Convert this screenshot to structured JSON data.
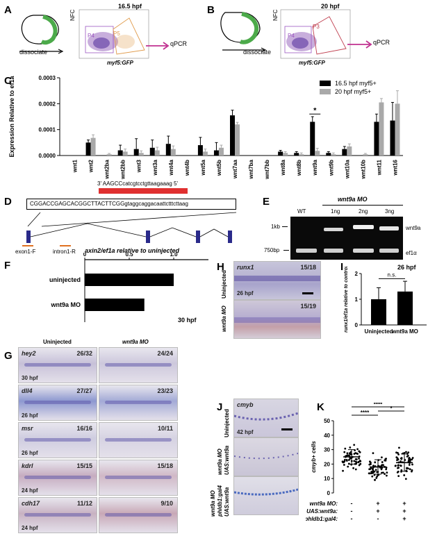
{
  "panels": {
    "A": {
      "letter": "A",
      "stage": "16.5 hpf",
      "step": "dissociate",
      "assay": "qPCR",
      "x_axis": "myf5:GFP",
      "y_axis": "NFC",
      "gate_left": "P4",
      "gate_right": "P5"
    },
    "B": {
      "letter": "B",
      "stage": "20 hpf",
      "step": "dissociate",
      "assay": "qPCR",
      "x_axis": "myf5:GFP",
      "y_axis": "NFC",
      "gate_left": "P4",
      "gate_right": "P3"
    },
    "C": {
      "letter": "C",
      "ylabel": "Expression Relative to ef1a",
      "legend": [
        "16.5 hpf myf5+",
        "20 hpf myf5+"
      ],
      "significance": "*"
    },
    "D": {
      "letter": "D",
      "mo_seq": "3' AAGCCcatcgtcctgttaagaaag 5'",
      "genomic_seq": "CGGACCGAGCACGGCTTACTTCGGgtaggcaggacaattctttcttaag",
      "primer_f": "exon1-F",
      "primer_r": "intron1-R"
    },
    "E": {
      "letter": "E",
      "title": "wnt9a MO",
      "lanes": [
        "WT",
        "1ng",
        "2ng",
        "3ng"
      ],
      "markers": [
        "1kb",
        "750bp"
      ],
      "bands": [
        "wnt9a",
        "ef1α"
      ]
    },
    "F": {
      "letter": "F",
      "title": "axin2/ef1a relative to uninjected",
      "ticks": [
        "0",
        "0.5",
        "1.0",
        "1.5"
      ],
      "rows": [
        "uninjected",
        "wnt9a MO"
      ],
      "stage": "30 hpf"
    },
    "G": {
      "letter": "G",
      "col1": "Uninjected",
      "col2": "wnt9a MO",
      "rows": [
        {
          "gene": "hey2",
          "stage": "30 hpf",
          "c1": "26/32",
          "c2": "24/24"
        },
        {
          "gene": "dll4",
          "stage": "26 hpf",
          "c1": "27/27",
          "c2": "23/23"
        },
        {
          "gene": "msr",
          "stage": "26 hpf",
          "c1": "16/16",
          "c2": "10/11"
        },
        {
          "gene": "kdrl",
          "stage": "24 hpf",
          "c1": "15/15",
          "c2": "15/18"
        },
        {
          "gene": "cdh17",
          "stage": "24 hpf",
          "c1": "11/12",
          "c2": "9/10"
        }
      ]
    },
    "H": {
      "letter": "H",
      "gene": "runx1",
      "row1": "Uninjected",
      "row2": "wnt9a MO",
      "c1": "15/18",
      "c2": "15/19",
      "stage": "26 hpf"
    },
    "I": {
      "letter": "I",
      "stage": "26 hpf",
      "ylabel": "runx1/ef1a relative to control",
      "categories": [
        "Uninjected",
        "wnt9a MO"
      ],
      "sig": "n.s.",
      "yticks": [
        "0",
        "1",
        "2"
      ]
    },
    "J": {
      "letter": "J",
      "gene": "cmyb",
      "stage": "42 hpf",
      "row1": "Uninjected",
      "row2a": "wnt9a MO",
      "row2b": "UAS:wnt9a",
      "row3a": "wnt9a MO",
      "row3b": "phldb1:gal4",
      "row3c": "UAS:wnt9a"
    },
    "K": {
      "letter": "K",
      "ylabel": "cmyb+ cells",
      "yticks": [
        "0",
        "10",
        "20",
        "30",
        "40",
        "50"
      ],
      "stars": [
        "****",
        "****",
        "*"
      ],
      "row_labels": [
        "wnt9a MO:",
        "UAS:wnt9a:",
        "phldb1:gal4:"
      ],
      "matrix": [
        [
          "-",
          "+",
          "+"
        ],
        [
          "-",
          "+",
          "+"
        ],
        [
          "-",
          "-",
          "+"
        ]
      ]
    }
  },
  "chart_data": [
    {
      "type": "bar",
      "title": "",
      "ylabel": "Expression Relative to ef1a",
      "ylim": [
        0,
        0.0003
      ],
      "categories": [
        "wnt1",
        "wnt2",
        "wnt2ba",
        "wnt2bb",
        "wnt3",
        "wnt3a",
        "wnt4a",
        "wnt4b",
        "wnt5a",
        "wnt5b",
        "wnt7aa",
        "wnt7ba",
        "wnt7bb",
        "wnt8a",
        "wnt8b",
        "wnt9a",
        "wnt9b",
        "wnt10a",
        "wnt10b",
        "wnt11",
        "wnt16"
      ],
      "series": [
        {
          "name": "16.5 hpf myf5+",
          "values": [
            0,
            5e-05,
            0,
            2e-05,
            2.5e-05,
            3e-05,
            4.5e-05,
            0,
            4e-05,
            2e-05,
            0.000155,
            0,
            0,
            1.5e-05,
            1e-05,
            0.00013,
            1e-05,
            2.5e-05,
            0,
            0.00013,
            0.000135
          ]
        },
        {
          "name": "20 hpf myf5+",
          "values": [
            0,
            6.8e-05,
            5e-06,
            1.5e-05,
            1e-05,
            2e-05,
            2.5e-05,
            0,
            1.5e-05,
            3e-05,
            0.00012,
            0,
            0,
            1e-05,
            5e-06,
            1.8e-05,
            5e-06,
            3.5e-05,
            5e-06,
            0.000205,
            0.0002
          ]
        }
      ],
      "errors": [
        [
          0,
          1e-05,
          0,
          2e-05,
          4e-05,
          3e-05,
          3e-05,
          0,
          3e-05,
          3e-05,
          2e-05,
          0,
          0,
          5e-06,
          5e-06,
          2e-05,
          5e-06,
          1e-05,
          0,
          3e-05,
          7e-05
        ],
        [
          0,
          1.2e-05,
          3e-06,
          1e-05,
          8e-06,
          1.2e-05,
          1.2e-05,
          0,
          1e-05,
          1e-05,
          8e-06,
          0,
          0,
          5e-06,
          5e-06,
          1e-05,
          5e-06,
          1e-05,
          3e-06,
          1.5e-05,
          5e-05
        ]
      ]
    },
    {
      "type": "bar",
      "title": "axin2/ef1a relative to uninjected",
      "categories": [
        "uninjected",
        "wnt9a MO"
      ],
      "values": [
        1.0,
        0.67
      ],
      "xlim": [
        0,
        1.5
      ],
      "orientation": "horizontal"
    },
    {
      "type": "bar",
      "title": "26 hpf",
      "ylabel": "runx1/ef1a relative to control",
      "categories": [
        "Uninjected",
        "wnt9a MO"
      ],
      "values": [
        1.0,
        1.3
      ],
      "errors": [
        0.45,
        0.4
      ],
      "ylim": [
        0,
        2
      ]
    },
    {
      "type": "scatter",
      "ylabel": "cmyb+ cells",
      "ylim": [
        0,
        50
      ],
      "groups": [
        "control",
        "wnt9a MO + UAS:wnt9a",
        "wnt9a MO + phldb1:gal4 + UAS:wnt9a"
      ],
      "means": [
        25,
        18,
        21
      ],
      "sd": [
        5,
        5,
        6
      ]
    }
  ]
}
